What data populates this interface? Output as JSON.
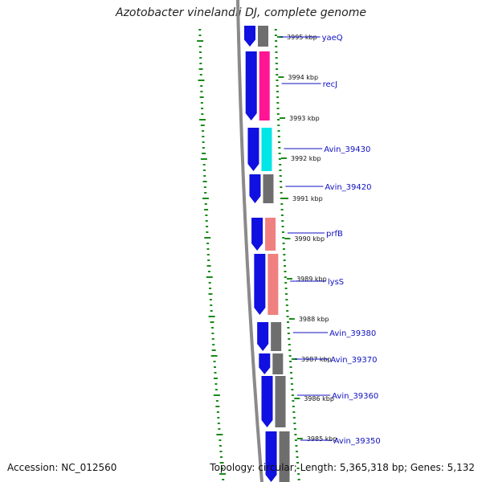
{
  "title": "Azotobacter vinelandii DJ, complete genome",
  "footer": {
    "accession_label": "Accession:",
    "accession": "NC_012560",
    "topology_label": "Topology:",
    "topology": "circular",
    "length_label": "Length:",
    "length": "5,365,318 bp",
    "genes_label": "Genes:",
    "genes": "5,132"
  },
  "colors": {
    "backbone": "#8a8a8a",
    "strand_cds": "#1010e0",
    "gc_dots": "#1a8a1a",
    "ticks": "#1a8a1a",
    "label_line": "#1010c0"
  },
  "scale_ticks": [
    "3995 kbp",
    "3994 kbp",
    "3993 kbp",
    "3992 kbp",
    "3991 kbp",
    "3990 kbp",
    "3989 kbp",
    "3988 kbp",
    "3987 kbp",
    "3986 kbp",
    "3985 kbp"
  ],
  "genes": [
    {
      "label": "yaeQ",
      "color": "#6e6e6e"
    },
    {
      "label": "recJ",
      "color": "#ff1493"
    },
    {
      "label": "Avin_39430",
      "color": "#00e5e5"
    },
    {
      "label": "Avin_39420",
      "color": "#6e6e6e"
    },
    {
      "label": "prfB",
      "color": "#f08080"
    },
    {
      "label": "lysS",
      "color": "#f08080"
    },
    {
      "label": "Avin_39380",
      "color": "#6e6e6e"
    },
    {
      "label": "Avin_39370",
      "color": "#6e6e6e"
    },
    {
      "label": "Avin_39360",
      "color": "#6e6e6e"
    },
    {
      "label": "Avin_39350",
      "color": "#6e6e6e"
    }
  ]
}
